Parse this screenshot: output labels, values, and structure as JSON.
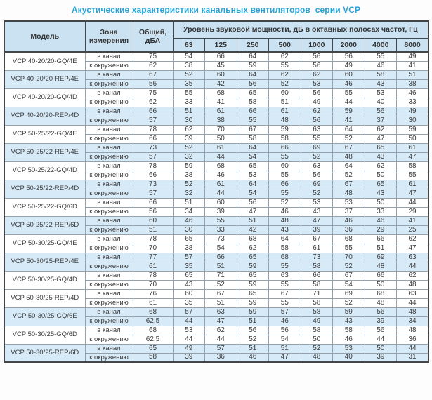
{
  "title": "Акустические характеристики канальных вентиляторов  серии VCP",
  "colors": {
    "title_text": "#29a3d7",
    "header_background": "#cbe2f2",
    "shaded_row_background": "#d7eaf7",
    "border_dark": "#454545",
    "border_light": "#96a2ab"
  },
  "table": {
    "headers": {
      "model": "Модель",
      "zone": "Зона\nизмерения",
      "total": "Общий,\nдБА",
      "spl": "Уровень звуковой мощности, дБ в октавных полосах частот, Гц",
      "frequencies": [
        "63",
        "125",
        "250",
        "500",
        "1000",
        "2000",
        "4000",
        "8000"
      ]
    },
    "zone_labels": [
      "в канал",
      "к окружению"
    ],
    "rows": [
      {
        "model": "VCP 40-20/20-GQ/4E",
        "shaded": false,
        "in_duct": {
          "total": "75",
          "bands": [
            54,
            66,
            64,
            62,
            56,
            56,
            55,
            49
          ]
        },
        "to_environment": {
          "total": "62",
          "bands": [
            38,
            45,
            59,
            55,
            56,
            49,
            46,
            41
          ]
        }
      },
      {
        "model": "VCP 40-20/20-REP/4E",
        "shaded": true,
        "in_duct": {
          "total": "67",
          "bands": [
            52,
            60,
            64,
            62,
            62,
            60,
            58,
            51
          ]
        },
        "to_environment": {
          "total": "56",
          "bands": [
            35,
            42,
            56,
            52,
            53,
            46,
            43,
            38
          ]
        }
      },
      {
        "model": "VCP 40-20/20-GQ/4D",
        "shaded": false,
        "in_duct": {
          "total": "75",
          "bands": [
            55,
            68,
            65,
            60,
            56,
            55,
            53,
            46
          ]
        },
        "to_environment": {
          "total": "62",
          "bands": [
            33,
            41,
            58,
            51,
            49,
            44,
            40,
            33
          ]
        }
      },
      {
        "model": "VCP 40-20/20-REP/4D",
        "shaded": true,
        "in_duct": {
          "total": "66",
          "bands": [
            51,
            61,
            66,
            61,
            62,
            59,
            56,
            49
          ]
        },
        "to_environment": {
          "total": "57",
          "bands": [
            30,
            38,
            55,
            48,
            56,
            41,
            37,
            30
          ]
        }
      },
      {
        "model": "VCP 50-25/22-GQ/4E",
        "shaded": false,
        "in_duct": {
          "total": "78",
          "bands": [
            62,
            70,
            67,
            59,
            63,
            64,
            62,
            59
          ]
        },
        "to_environment": {
          "total": "66",
          "bands": [
            39,
            50,
            58,
            58,
            55,
            52,
            47,
            50
          ]
        }
      },
      {
        "model": "VCP 50-25/22-REP/4E",
        "shaded": true,
        "in_duct": {
          "total": "73",
          "bands": [
            52,
            61,
            64,
            66,
            69,
            67,
            65,
            61
          ]
        },
        "to_environment": {
          "total": "57",
          "bands": [
            32,
            44,
            54,
            55,
            52,
            48,
            43,
            47
          ]
        }
      },
      {
        "model": "VCP 50-25/22-GQ/4D",
        "shaded": false,
        "in_duct": {
          "total": "78",
          "bands": [
            59,
            68,
            65,
            60,
            63,
            64,
            62,
            58
          ]
        },
        "to_environment": {
          "total": "66",
          "bands": [
            38,
            46,
            53,
            55,
            56,
            52,
            50,
            55
          ]
        }
      },
      {
        "model": "VCP 50-25/22-REP/4D",
        "shaded": true,
        "in_duct": {
          "total": "73",
          "bands": [
            52,
            61,
            64,
            66,
            69,
            67,
            65,
            61
          ]
        },
        "to_environment": {
          "total": "57",
          "bands": [
            32,
            44,
            54,
            55,
            52,
            48,
            43,
            47
          ]
        }
      },
      {
        "model": "VCP 50-25/22-GQ/6D",
        "shaded": false,
        "in_duct": {
          "total": "66",
          "bands": [
            51,
            60,
            56,
            52,
            53,
            53,
            50,
            44
          ]
        },
        "to_environment": {
          "total": "56",
          "bands": [
            34,
            39,
            47,
            46,
            43,
            37,
            33,
            29
          ]
        }
      },
      {
        "model": "VCP 50-25/22-REP/6D",
        "shaded": true,
        "in_duct": {
          "total": "60",
          "bands": [
            46,
            55,
            51,
            48,
            47,
            46,
            46,
            41
          ]
        },
        "to_environment": {
          "total": "51",
          "bands": [
            30,
            33,
            42,
            43,
            39,
            36,
            29,
            25
          ]
        }
      },
      {
        "model": "VCP 50-30/25-GQ/4E",
        "shaded": false,
        "in_duct": {
          "total": "78",
          "bands": [
            65,
            73,
            68,
            64,
            67,
            68,
            66,
            62
          ]
        },
        "to_environment": {
          "total": "70",
          "bands": [
            38,
            54,
            62,
            58,
            61,
            55,
            51,
            47
          ]
        }
      },
      {
        "model": "VCP 50-30/25-REP/4E",
        "shaded": true,
        "in_duct": {
          "total": "77",
          "bands": [
            57,
            66,
            65,
            68,
            73,
            70,
            69,
            63
          ]
        },
        "to_environment": {
          "total": "61",
          "bands": [
            35,
            51,
            59,
            55,
            58,
            52,
            48,
            44
          ]
        }
      },
      {
        "model": "VCP 50-30/25-GQ/4D",
        "shaded": false,
        "in_duct": {
          "total": "78",
          "bands": [
            65,
            71,
            65,
            63,
            66,
            67,
            66,
            62
          ]
        },
        "to_environment": {
          "total": "70",
          "bands": [
            43,
            52,
            59,
            55,
            58,
            54,
            50,
            48
          ]
        }
      },
      {
        "model": "VCP 50-30/25-REP/4D",
        "shaded": false,
        "in_duct": {
          "total": "76",
          "bands": [
            60,
            67,
            65,
            67,
            71,
            69,
            68,
            63
          ]
        },
        "to_environment": {
          "total": "61",
          "bands": [
            35,
            51,
            59,
            55,
            58,
            52,
            48,
            44
          ]
        }
      },
      {
        "model": "VCP 50-30/25-GQ/6E",
        "shaded": true,
        "in_duct": {
          "total": "68",
          "bands": [
            57,
            63,
            59,
            57,
            58,
            59,
            56,
            48
          ]
        },
        "to_environment": {
          "total": "62,5",
          "bands": [
            44,
            47,
            51,
            46,
            49,
            43,
            39,
            34
          ]
        }
      },
      {
        "model": "VCP 50-30/25-GQ/6D",
        "shaded": false,
        "in_duct": {
          "total": "68",
          "bands": [
            53,
            62,
            56,
            56,
            58,
            58,
            56,
            48
          ]
        },
        "to_environment": {
          "total": "62,5",
          "bands": [
            44,
            44,
            52,
            54,
            50,
            46,
            44,
            36
          ]
        }
      },
      {
        "model": "VCP 50-30/25-REP/6D",
        "shaded": true,
        "in_duct": {
          "total": "65",
          "bands": [
            49,
            57,
            51,
            51,
            52,
            53,
            50,
            44
          ]
        },
        "to_environment": {
          "total": "58",
          "bands": [
            39,
            36,
            46,
            47,
            48,
            40,
            39,
            31
          ]
        }
      }
    ]
  }
}
